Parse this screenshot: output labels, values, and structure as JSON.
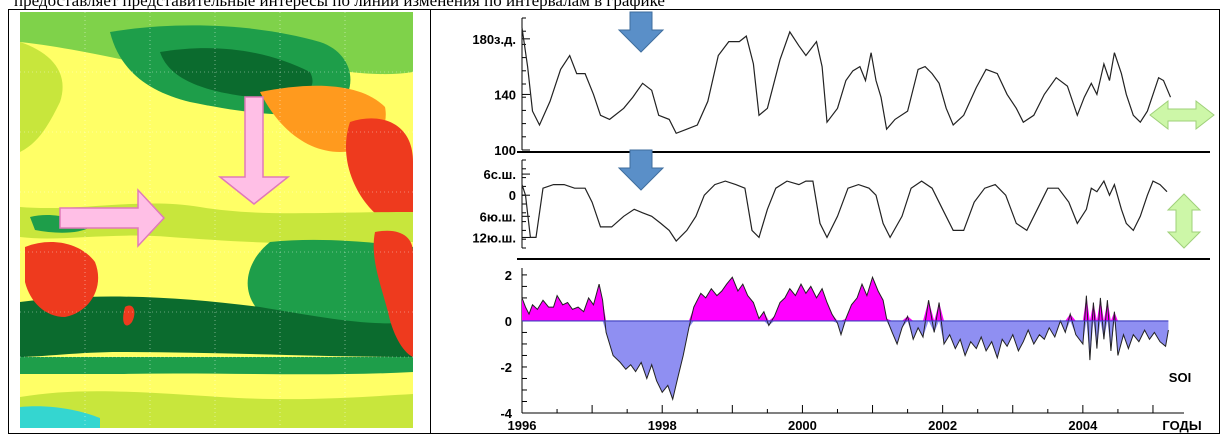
{
  "caption": "предоставляет представительные интересы по линии изменения по интервалам в графике",
  "map": {
    "colors": {
      "water_light": "#ffff66",
      "yellow_green": "#c8e63c",
      "green_light": "#7fd24a",
      "green": "#1e9e4a",
      "green_dark": "#0b6b2e",
      "orange": "#ff9a1e",
      "red": "#ee3a1e",
      "cyan": "#34d6d0",
      "arrow": "#ffbfe6",
      "arrow_edge": "#e07ab8"
    }
  },
  "chart_data": [
    {
      "type": "line",
      "title": "",
      "xlabel": "",
      "ylabel": "",
      "xlim": [
        1996,
        2005.3
      ],
      "ylim": [
        100,
        195
      ],
      "ytick_labels": [
        {
          "value": 180,
          "label": "180з.д."
        },
        {
          "value": 140,
          "label": "140"
        },
        {
          "value": 100,
          "label": "100"
        }
      ],
      "points": [
        [
          1996.0,
          188
        ],
        [
          1996.08,
          160
        ],
        [
          1996.15,
          128
        ],
        [
          1996.25,
          118
        ],
        [
          1996.4,
          135
        ],
        [
          1996.55,
          158
        ],
        [
          1996.68,
          168
        ],
        [
          1996.78,
          155
        ],
        [
          1996.9,
          155
        ],
        [
          1997.02,
          140
        ],
        [
          1997.12,
          125
        ],
        [
          1997.25,
          122
        ],
        [
          1997.45,
          130
        ],
        [
          1997.58,
          138
        ],
        [
          1997.72,
          148
        ],
        [
          1997.85,
          143
        ],
        [
          1997.95,
          125
        ],
        [
          1998.1,
          122
        ],
        [
          1998.2,
          112
        ],
        [
          1998.35,
          115
        ],
        [
          1998.5,
          118
        ],
        [
          1998.65,
          135
        ],
        [
          1998.8,
          168
        ],
        [
          1998.95,
          178
        ],
        [
          1999.1,
          178
        ],
        [
          1999.2,
          182
        ],
        [
          1999.3,
          162
        ],
        [
          1999.38,
          125
        ],
        [
          1999.5,
          130
        ],
        [
          1999.68,
          165
        ],
        [
          1999.82,
          185
        ],
        [
          1999.95,
          175
        ],
        [
          2000.05,
          168
        ],
        [
          2000.2,
          178
        ],
        [
          2000.28,
          160
        ],
        [
          2000.35,
          120
        ],
        [
          2000.5,
          130
        ],
        [
          2000.62,
          150
        ],
        [
          2000.72,
          157
        ],
        [
          2000.82,
          160
        ],
        [
          2000.9,
          150
        ],
        [
          2000.98,
          170
        ],
        [
          2001.05,
          150
        ],
        [
          2001.12,
          138
        ],
        [
          2001.2,
          115
        ],
        [
          2001.32,
          122
        ],
        [
          2001.5,
          128
        ],
        [
          2001.65,
          158
        ],
        [
          2001.75,
          160
        ],
        [
          2001.85,
          155
        ],
        [
          2001.95,
          148
        ],
        [
          2002.05,
          130
        ],
        [
          2002.15,
          118
        ],
        [
          2002.3,
          125
        ],
        [
          2002.48,
          145
        ],
        [
          2002.62,
          158
        ],
        [
          2002.78,
          155
        ],
        [
          2002.92,
          140
        ],
        [
          2003.05,
          130
        ],
        [
          2003.15,
          120
        ],
        [
          2003.3,
          125
        ],
        [
          2003.45,
          140
        ],
        [
          2003.62,
          152
        ],
        [
          2003.78,
          146
        ],
        [
          2003.92,
          125
        ],
        [
          2004.02,
          138
        ],
        [
          2004.12,
          148
        ],
        [
          2004.2,
          140
        ],
        [
          2004.3,
          162
        ],
        [
          2004.38,
          150
        ],
        [
          2004.45,
          170
        ],
        [
          2004.55,
          155
        ],
        [
          2004.62,
          140
        ],
        [
          2004.72,
          125
        ],
        [
          2004.82,
          120
        ],
        [
          2004.92,
          128
        ],
        [
          2005.0,
          140
        ],
        [
          2005.08,
          152
        ],
        [
          2005.15,
          150
        ],
        [
          2005.25,
          138
        ]
      ]
    },
    {
      "type": "line",
      "title": "",
      "xlabel": "",
      "ylabel": "",
      "xlim": [
        1996,
        2005.3
      ],
      "ylim": [
        -15,
        10
      ],
      "ytick_labels": [
        {
          "value": 6,
          "label": "6с.ш."
        },
        {
          "value": 0,
          "label": "0"
        },
        {
          "value": -6,
          "label": "6ю.ш."
        },
        {
          "value": -12,
          "label": "12ю.ш."
        }
      ],
      "points": [
        [
          1996.0,
          3
        ],
        [
          1996.05,
          0
        ],
        [
          1996.12,
          -12
        ],
        [
          1996.2,
          -12
        ],
        [
          1996.3,
          2
        ],
        [
          1996.45,
          3
        ],
        [
          1996.6,
          3
        ],
        [
          1996.75,
          2
        ],
        [
          1996.9,
          2
        ],
        [
          1997.0,
          -2
        ],
        [
          1997.12,
          -9
        ],
        [
          1997.28,
          -9
        ],
        [
          1997.45,
          -6
        ],
        [
          1997.6,
          -4
        ],
        [
          1997.72,
          -5
        ],
        [
          1997.85,
          -6
        ],
        [
          1997.98,
          -8
        ],
        [
          1998.1,
          -10
        ],
        [
          1998.2,
          -13
        ],
        [
          1998.35,
          -10
        ],
        [
          1998.48,
          -6
        ],
        [
          1998.6,
          0
        ],
        [
          1998.75,
          3
        ],
        [
          1998.9,
          4
        ],
        [
          1999.05,
          3
        ],
        [
          1999.18,
          2
        ],
        [
          1999.28,
          -10
        ],
        [
          1999.38,
          -12
        ],
        [
          1999.5,
          -4
        ],
        [
          1999.62,
          2
        ],
        [
          1999.78,
          4
        ],
        [
          1999.95,
          3
        ],
        [
          2000.05,
          4
        ],
        [
          2000.15,
          4
        ],
        [
          2000.25,
          -8
        ],
        [
          2000.35,
          -12
        ],
        [
          2000.5,
          -6
        ],
        [
          2000.65,
          2
        ],
        [
          2000.8,
          3
        ],
        [
          2000.95,
          2
        ],
        [
          2001.05,
          0
        ],
        [
          2001.15,
          -8
        ],
        [
          2001.25,
          -12
        ],
        [
          2001.42,
          -6
        ],
        [
          2001.55,
          2
        ],
        [
          2001.7,
          4
        ],
        [
          2001.85,
          2
        ],
        [
          2002.0,
          -4
        ],
        [
          2002.15,
          -10
        ],
        [
          2002.3,
          -10
        ],
        [
          2002.45,
          -2
        ],
        [
          2002.6,
          2
        ],
        [
          2002.75,
          3
        ],
        [
          2002.9,
          0
        ],
        [
          2003.05,
          -8
        ],
        [
          2003.2,
          -10
        ],
        [
          2003.35,
          -4
        ],
        [
          2003.5,
          2
        ],
        [
          2003.65,
          2
        ],
        [
          2003.8,
          -2
        ],
        [
          2003.92,
          -8
        ],
        [
          2004.05,
          -4
        ],
        [
          2004.12,
          2
        ],
        [
          2004.2,
          1
        ],
        [
          2004.3,
          4
        ],
        [
          2004.38,
          0
        ],
        [
          2004.45,
          3
        ],
        [
          2004.55,
          -4
        ],
        [
          2004.62,
          -8
        ],
        [
          2004.72,
          -10
        ],
        [
          2004.82,
          -6
        ],
        [
          2004.92,
          0
        ],
        [
          2005.0,
          4
        ],
        [
          2005.1,
          3
        ],
        [
          2005.2,
          1
        ]
      ]
    },
    {
      "type": "area",
      "title": "",
      "xlabel": "",
      "ylabel": "",
      "series_label": "SOI",
      "xlim": [
        1996,
        2005.3
      ],
      "ylim": [
        -4,
        2.3
      ],
      "yticks": [
        2,
        0,
        -2,
        -4
      ],
      "x_tick_labels": [
        "1996",
        "1998",
        "2000",
        "2002",
        "2004",
        "ГОДЫ"
      ],
      "x_tick_values": [
        1996,
        1998,
        2000,
        2002,
        2004
      ],
      "positive_color": "#ff00ff",
      "negative_color": "#8f8ff2",
      "points": [
        [
          1996.0,
          1.0
        ],
        [
          1996.05,
          0.6
        ],
        [
          1996.1,
          0.3
        ],
        [
          1996.15,
          0.7
        ],
        [
          1996.22,
          0.5
        ],
        [
          1996.3,
          0.9
        ],
        [
          1996.38,
          0.6
        ],
        [
          1996.45,
          0.6
        ],
        [
          1996.5,
          1.1
        ],
        [
          1996.58,
          0.7
        ],
        [
          1996.65,
          0.8
        ],
        [
          1996.72,
          0.5
        ],
        [
          1996.8,
          0.6
        ],
        [
          1996.88,
          0.4
        ],
        [
          1996.95,
          1.0
        ],
        [
          1997.02,
          0.7
        ],
        [
          1997.1,
          1.6
        ],
        [
          1997.15,
          0.9
        ],
        [
          1997.2,
          -0.5
        ],
        [
          1997.3,
          -1.5
        ],
        [
          1997.4,
          -1.8
        ],
        [
          1997.48,
          -2.1
        ],
        [
          1997.55,
          -1.9
        ],
        [
          1997.62,
          -2.2
        ],
        [
          1997.7,
          -1.8
        ],
        [
          1997.78,
          -2.5
        ],
        [
          1997.85,
          -1.9
        ],
        [
          1997.92,
          -2.6
        ],
        [
          1998.0,
          -3.1
        ],
        [
          1998.08,
          -2.8
        ],
        [
          1998.15,
          -3.4
        ],
        [
          1998.22,
          -2.5
        ],
        [
          1998.3,
          -1.5
        ],
        [
          1998.38,
          -0.3
        ],
        [
          1998.45,
          0.6
        ],
        [
          1998.55,
          1.2
        ],
        [
          1998.62,
          1.0
        ],
        [
          1998.7,
          1.4
        ],
        [
          1998.78,
          1.1
        ],
        [
          1998.85,
          1.3
        ],
        [
          1998.92,
          1.6
        ],
        [
          1999.0,
          1.9
        ],
        [
          1999.08,
          1.3
        ],
        [
          1999.15,
          1.6
        ],
        [
          1999.22,
          1.1
        ],
        [
          1999.3,
          0.8
        ],
        [
          1999.38,
          0.1
        ],
        [
          1999.45,
          0.4
        ],
        [
          1999.52,
          -0.2
        ],
        [
          1999.6,
          0.2
        ],
        [
          1999.68,
          0.8
        ],
        [
          1999.75,
          1.0
        ],
        [
          1999.82,
          1.4
        ],
        [
          1999.9,
          1.1
        ],
        [
          1999.98,
          1.6
        ],
        [
          2000.05,
          1.2
        ],
        [
          2000.12,
          1.5
        ],
        [
          2000.2,
          1.0
        ],
        [
          2000.28,
          1.4
        ],
        [
          2000.35,
          0.8
        ],
        [
          2000.42,
          0.3
        ],
        [
          2000.5,
          -0.1
        ],
        [
          2000.55,
          -0.6
        ],
        [
          2000.62,
          0.1
        ],
        [
          2000.7,
          0.7
        ],
        [
          2000.78,
          1.0
        ],
        [
          2000.85,
          1.6
        ],
        [
          2000.92,
          1.1
        ],
        [
          2001.0,
          1.9
        ],
        [
          2001.08,
          1.3
        ],
        [
          2001.15,
          0.9
        ],
        [
          2001.2,
          0.1
        ],
        [
          2001.28,
          -0.5
        ],
        [
          2001.35,
          -1.0
        ],
        [
          2001.42,
          -0.3
        ],
        [
          2001.5,
          0.2
        ],
        [
          2001.58,
          -0.8
        ],
        [
          2001.65,
          -0.3
        ],
        [
          2001.72,
          -0.7
        ],
        [
          2001.8,
          0.9
        ],
        [
          2001.88,
          -0.5
        ],
        [
          2001.95,
          0.8
        ],
        [
          2002.02,
          -1.0
        ],
        [
          2002.1,
          -0.6
        ],
        [
          2002.18,
          -1.2
        ],
        [
          2002.25,
          -0.8
        ],
        [
          2002.32,
          -1.5
        ],
        [
          2002.4,
          -0.9
        ],
        [
          2002.48,
          -1.2
        ],
        [
          2002.55,
          -0.7
        ],
        [
          2002.62,
          -1.3
        ],
        [
          2002.7,
          -0.9
        ],
        [
          2002.78,
          -1.6
        ],
        [
          2002.85,
          -0.8
        ],
        [
          2002.92,
          -1.1
        ],
        [
          2003.0,
          -0.6
        ],
        [
          2003.08,
          -1.3
        ],
        [
          2003.15,
          -0.9
        ],
        [
          2003.22,
          -0.4
        ],
        [
          2003.3,
          -1.0
        ],
        [
          2003.38,
          -0.6
        ],
        [
          2003.45,
          -0.8
        ],
        [
          2003.52,
          -0.3
        ],
        [
          2003.6,
          -0.7
        ],
        [
          2003.68,
          0.0
        ],
        [
          2003.75,
          -0.5
        ],
        [
          2003.82,
          0.3
        ],
        [
          2003.9,
          -0.6
        ],
        [
          2004.0,
          -1.0
        ],
        [
          2004.05,
          1.1
        ],
        [
          2004.1,
          -1.7
        ],
        [
          2004.15,
          0.8
        ],
        [
          2004.2,
          -1.2
        ],
        [
          2004.25,
          1.0
        ],
        [
          2004.3,
          -0.8
        ],
        [
          2004.35,
          0.9
        ],
        [
          2004.4,
          -1.3
        ],
        [
          2004.45,
          0.4
        ],
        [
          2004.5,
          -1.5
        ],
        [
          2004.58,
          -0.6
        ],
        [
          2004.65,
          -1.2
        ],
        [
          2004.72,
          -0.6
        ],
        [
          2004.8,
          -0.9
        ],
        [
          2004.88,
          -0.4
        ],
        [
          2004.95,
          -0.8
        ],
        [
          2005.02,
          -0.5
        ],
        [
          2005.1,
          -0.9
        ],
        [
          2005.18,
          -1.1
        ],
        [
          2005.22,
          -0.4
        ]
      ]
    }
  ],
  "annotations": {
    "arrow_color": "#5a8fc8",
    "double_arrow_color": "#cdf7a8"
  }
}
